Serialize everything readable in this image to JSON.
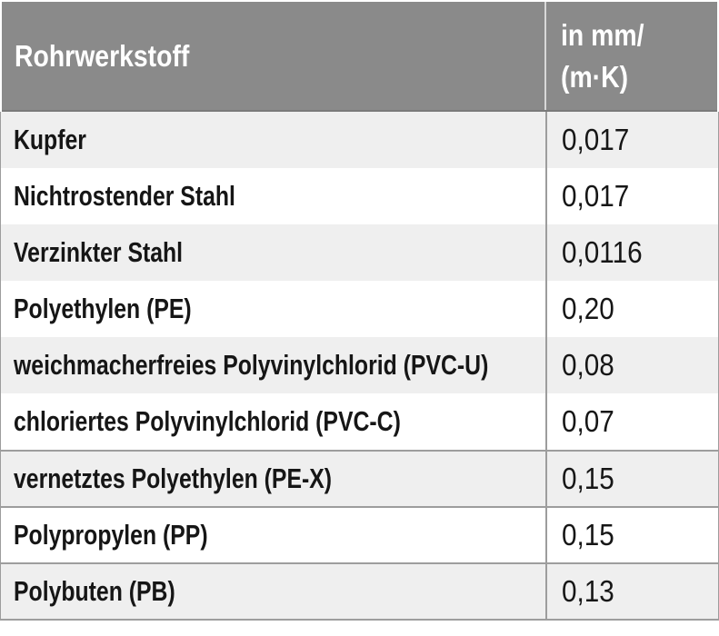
{
  "table": {
    "material_column_header": "Rohrwerkstoff",
    "value_column_header_lines": [
      "in mm/",
      "(m·K)"
    ],
    "rows": [
      {
        "material": "Kupfer",
        "value": "0,017",
        "separator_top": false
      },
      {
        "material": "Nichtrostender Stahl",
        "value": "0,017",
        "separator_top": false
      },
      {
        "material": "Verzinkter Stahl",
        "value": "0,0116",
        "separator_top": false
      },
      {
        "material": "Polyethylen (PE)",
        "value": "0,20",
        "separator_top": false
      },
      {
        "material": "weichmacherfreies Polyvinylchlorid (PVC-U)",
        "value": "0,08",
        "separator_top": false
      },
      {
        "material": "chloriertes Polyvinylchlorid (PVC-C)",
        "value": "0,07",
        "separator_top": false
      },
      {
        "material": "vernetztes Polyethylen (PE-X)",
        "value": "0,15",
        "separator_top": true
      },
      {
        "material": "Polypropylen (PP)",
        "value": "0,15",
        "separator_top": true
      },
      {
        "material": "Polybuten (PB)",
        "value": "0,13",
        "separator_top": true
      }
    ],
    "colors": {
      "header_bg": "#8a8a8a",
      "header_text": "#ffffff",
      "row_bg": "#ffffff",
      "row_alt_bg": "#efefef",
      "grid_line": "#9d9d9d",
      "header_divider": "#d8d8d8",
      "header_bottom_edge": "#7a7a7a",
      "body_text": "#161616"
    }
  },
  "chart_data": {
    "type": "table",
    "columns": [
      "Rohrwerkstoff",
      "in mm/(m·K)"
    ],
    "rows": [
      [
        "Kupfer",
        "0,017"
      ],
      [
        "Nichtrostender Stahl",
        "0,017"
      ],
      [
        "Verzinkter Stahl",
        "0,0116"
      ],
      [
        "Polyethylen (PE)",
        "0,20"
      ],
      [
        "weichmacherfreies Polyvinylchlorid (PVC-U)",
        "0,08"
      ],
      [
        "chloriertes Polyvinylchlorid (PVC-C)",
        "0,07"
      ],
      [
        "vernetztes Polyethylen (PE-X)",
        "0,15"
      ],
      [
        "Polypropylen (PP)",
        "0,15"
      ],
      [
        "Polybuten (PB)",
        "0,13"
      ]
    ]
  }
}
